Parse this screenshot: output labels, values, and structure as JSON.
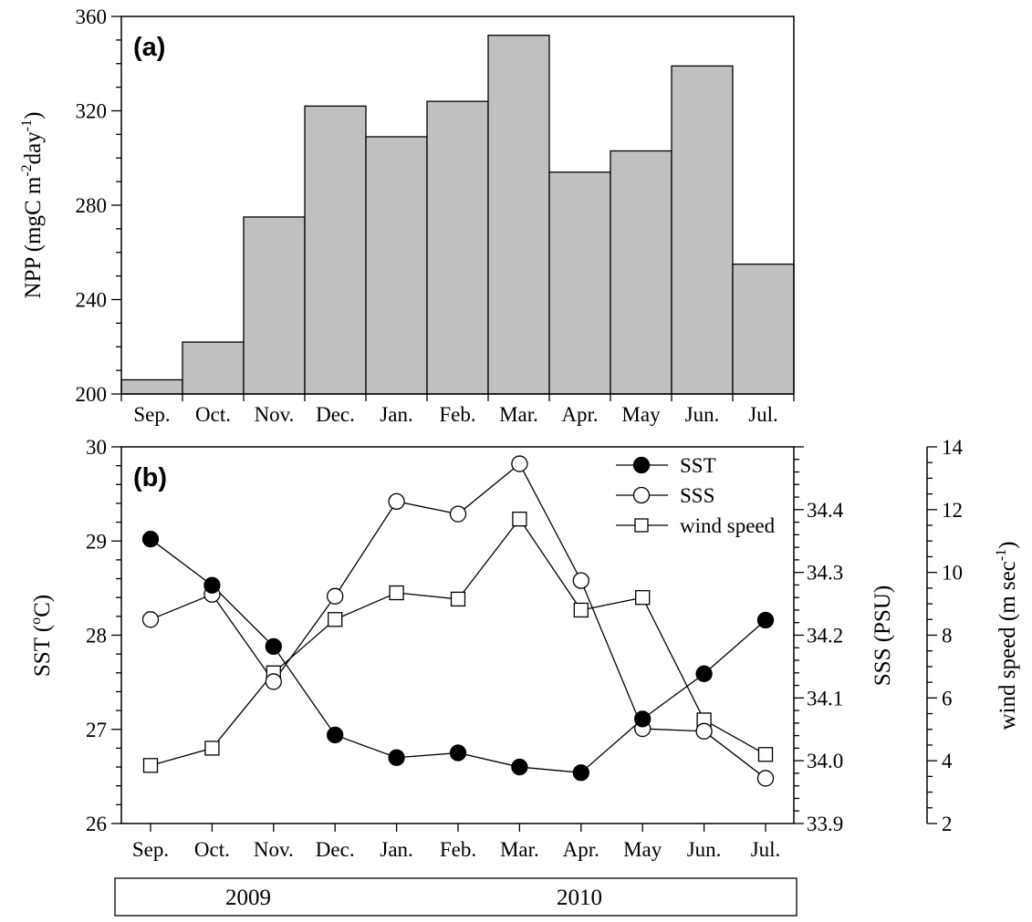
{
  "chart_data": [
    {
      "panel_label": "(a)",
      "type": "bar",
      "categories": [
        "Sep.",
        "Oct.",
        "Nov.",
        "Dec.",
        "Jan.",
        "Feb.",
        "Mar.",
        "Apr.",
        "May",
        "Jun.",
        "Jul."
      ],
      "series": [
        {
          "values": [
            206,
            222,
            275,
            322,
            309,
            324,
            352,
            294,
            303,
            339,
            255
          ]
        }
      ],
      "ylabel": {
        "main": "NPP (mgC m",
        "sup1": "-2",
        "mid": "day",
        "sup2": "-1",
        "end": ")"
      },
      "ylim": [
        200,
        360
      ],
      "yticks": [
        200,
        240,
        280,
        320,
        360
      ],
      "bar_fill": "#c0c0c0",
      "grid": false
    },
    {
      "panel_label": "(b)",
      "type": "line",
      "categories": [
        "Sep.",
        "Oct.",
        "Nov.",
        "Dec.",
        "Jan.",
        "Feb.",
        "Mar.",
        "Apr.",
        "May",
        "Jun.",
        "Jul."
      ],
      "series": [
        {
          "name": "SST",
          "axis": "left",
          "marker": "filled-circle",
          "values": [
            29.02,
            28.53,
            27.88,
            26.94,
            26.7,
            26.75,
            26.6,
            26.54,
            27.11,
            27.59,
            28.16
          ]
        },
        {
          "name": "SSS",
          "axis": "right1",
          "marker": "open-circle",
          "values": [
            34.225,
            34.265,
            34.126,
            34.262,
            34.413,
            34.393,
            34.473,
            34.287,
            34.051,
            34.047,
            33.972
          ]
        },
        {
          "name": "wind speed",
          "axis": "right2",
          "marker": "open-square",
          "values": [
            3.85,
            4.4,
            6.8,
            8.5,
            9.35,
            9.15,
            11.7,
            8.8,
            9.2,
            5.3,
            4.2
          ]
        }
      ],
      "axes": {
        "left": {
          "label_main": "SST (",
          "label_sup": "o",
          "label_end": "C)",
          "lim": [
            26,
            30
          ],
          "ticks": [
            26,
            27,
            28,
            29,
            30
          ]
        },
        "right1": {
          "label": "SSS (PSU)",
          "lim": [
            33.9,
            34.5
          ],
          "ticks": [
            "33.9",
            "34.0",
            "34.1",
            "34.2",
            "34.3",
            "34.4"
          ]
        },
        "right2": {
          "label_main": "wind speed (m sec",
          "label_sup": "-1",
          "label_end": ")",
          "lim": [
            2,
            14
          ],
          "ticks": [
            2,
            4,
            6,
            8,
            10,
            12,
            14
          ]
        }
      },
      "legend": {
        "placement": "top-right"
      },
      "years": [
        "2009",
        "2010"
      ],
      "grid": false
    }
  ]
}
